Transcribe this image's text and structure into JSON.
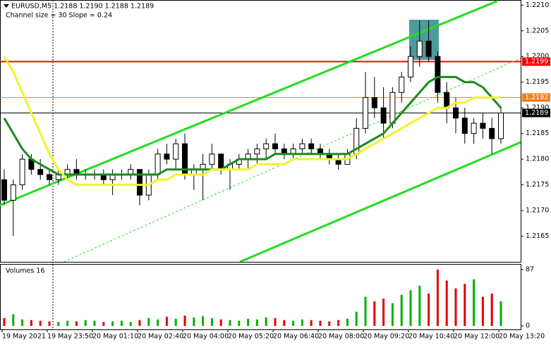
{
  "chart_data": {
    "type": "candlestick",
    "title": "EURUSD,M5  1.2188 1.2190 1.2188 1.2189",
    "subtitle": "Channel size = 30 Slope = 0.24",
    "categories": [
      "19 May 2021",
      null,
      null,
      null,
      null,
      "19 May 23:50",
      null,
      null,
      null,
      null,
      "20 May 01:10",
      null,
      null,
      null,
      null,
      "20 May 02:40",
      null,
      null,
      null,
      null,
      "20 May 04:00",
      null,
      null,
      null,
      null,
      "20 May 05:20",
      null,
      null,
      null,
      null,
      "20 May 06:40",
      null,
      null,
      null,
      null,
      "20 May 08:00",
      null,
      null,
      null,
      null,
      "20 May 09:20",
      null,
      null,
      null,
      null,
      "20 May 10:40",
      null,
      null,
      null,
      null,
      "20 May 12:00",
      null,
      null,
      null,
      null,
      "20 May 13:20"
    ],
    "open": [
      1.2176,
      1.2172,
      1.2175,
      1.218,
      1.2178,
      1.2177,
      1.2176,
      1.2177,
      1.2178,
      1.2177,
      1.2177,
      1.2177,
      1.2176,
      1.2177,
      1.2177,
      1.2178,
      1.2173,
      1.2177,
      1.2181,
      1.218,
      1.2183,
      1.2177,
      1.2178,
      1.2179,
      1.2181,
      1.2178,
      1.2179,
      1.218,
      1.2181,
      1.2182,
      1.2183,
      1.2182,
      1.2181,
      1.2182,
      1.2183,
      1.2182,
      1.2181,
      1.218,
      1.2179,
      1.2181,
      1.2186,
      1.2192,
      1.219,
      1.2187,
      1.2193,
      1.2196,
      1.22,
      1.2203,
      1.22,
      1.2193,
      1.219,
      1.2188,
      1.2185,
      1.2187,
      1.2186,
      1.2184
    ],
    "high": [
      1.2178,
      1.2176,
      1.2181,
      1.2181,
      1.218,
      1.2178,
      1.2178,
      1.2179,
      1.218,
      1.2178,
      1.2178,
      1.2178,
      1.2178,
      1.2178,
      1.2179,
      1.2178,
      1.2178,
      1.2182,
      1.2183,
      1.2184,
      1.2185,
      1.2179,
      1.2181,
      1.2183,
      1.2181,
      1.218,
      1.2181,
      1.2182,
      1.2183,
      1.2184,
      1.2185,
      1.2183,
      1.2183,
      1.2184,
      1.2184,
      1.2183,
      1.2182,
      1.2181,
      1.2182,
      1.2188,
      1.2197,
      1.2196,
      1.2194,
      1.2194,
      1.2197,
      1.2202,
      1.2207,
      1.2207,
      1.2201,
      1.2195,
      1.2192,
      1.219,
      1.2188,
      1.2189,
      1.2188,
      1.219
    ],
    "low": [
      1.2171,
      1.2165,
      1.2174,
      1.2177,
      1.2176,
      1.2175,
      1.2175,
      1.2176,
      1.2176,
      1.2176,
      1.2176,
      1.2175,
      1.2173,
      1.2176,
      1.2176,
      1.2171,
      1.2172,
      1.2176,
      1.2179,
      1.2178,
      1.2176,
      1.2174,
      1.2172,
      1.2178,
      1.2177,
      1.2174,
      1.2178,
      1.2178,
      1.2179,
      1.218,
      1.2181,
      1.218,
      1.218,
      1.2181,
      1.2181,
      1.218,
      1.2179,
      1.2178,
      1.2179,
      1.218,
      1.2185,
      1.2188,
      1.2184,
      1.2186,
      1.2191,
      1.2195,
      1.2198,
      1.2199,
      1.2191,
      1.2187,
      1.2185,
      1.2183,
      1.2183,
      1.2184,
      1.2181,
      1.2183
    ],
    "close": [
      1.2172,
      1.2175,
      1.218,
      1.2178,
      1.2177,
      1.2176,
      1.2177,
      1.2178,
      1.2177,
      1.2177,
      1.2177,
      1.2176,
      1.2177,
      1.2177,
      1.2178,
      1.2173,
      1.2177,
      1.2181,
      1.218,
      1.2183,
      1.2177,
      1.2178,
      1.2179,
      1.2181,
      1.2178,
      1.2179,
      1.218,
      1.2181,
      1.2182,
      1.2183,
      1.2182,
      1.2181,
      1.2182,
      1.2183,
      1.2182,
      1.2181,
      1.218,
      1.2179,
      1.2181,
      1.2186,
      1.2192,
      1.219,
      1.2187,
      1.2193,
      1.2196,
      1.22,
      1.2203,
      1.22,
      1.2193,
      1.219,
      1.2188,
      1.2185,
      1.2187,
      1.2186,
      1.2184,
      1.2189
    ],
    "up_color": "#ffffff",
    "down_color": "#000000",
    "ma": [
      {
        "color": "#1a8a1a",
        "values": [
          1.2188,
          1.2185,
          1.2182,
          1.218,
          1.2179,
          1.2178,
          1.2177,
          1.2177,
          1.2177,
          1.2177,
          1.2177,
          1.2177,
          1.2177,
          1.2177,
          1.2177,
          1.2177,
          1.2177,
          1.2177,
          1.2178,
          1.2178,
          1.2178,
          1.2178,
          1.2178,
          1.2178,
          1.2178,
          1.2179,
          1.218,
          1.218,
          1.218,
          1.218,
          1.2181,
          1.2181,
          1.2181,
          1.2181,
          1.2181,
          1.2181,
          1.2181,
          1.2181,
          1.2181,
          1.2182,
          1.2183,
          1.2184,
          1.2185,
          1.2187,
          1.2189,
          1.2191,
          1.2193,
          1.2195,
          1.2196,
          1.2196,
          1.2196,
          1.2195,
          1.2195,
          1.2194,
          1.2192,
          1.219
        ]
      },
      {
        "color": "#f2f22a",
        "values": [
          1.22,
          1.2197,
          1.2193,
          1.2189,
          1.2185,
          1.2181,
          1.2178,
          1.2176,
          1.2175,
          1.2175,
          1.2175,
          1.2175,
          1.2175,
          1.2175,
          1.2175,
          1.2175,
          1.2175,
          1.2176,
          1.2176,
          1.2177,
          1.2177,
          1.2177,
          1.2177,
          1.2178,
          1.2178,
          1.2178,
          1.2178,
          1.2178,
          1.2179,
          1.2179,
          1.2179,
          1.2179,
          1.218,
          1.218,
          1.218,
          1.218,
          1.218,
          1.218,
          1.218,
          1.2181,
          1.2182,
          1.2183,
          1.2184,
          1.2185,
          1.2186,
          1.2187,
          1.2188,
          1.2189,
          1.219,
          1.219,
          1.2191,
          1.2191,
          1.2192,
          1.2192,
          1.2192,
          1.2192
        ]
      }
    ],
    "channel": [
      {
        "color": "#22dd22",
        "dashed": false,
        "points": [
          [
            -0.5,
            1.2171
          ],
          [
            54.6,
            1.22108
          ]
        ]
      },
      {
        "color": "#22dd22",
        "dashed": false,
        "points": [
          [
            26.1,
            1.216
          ],
          [
            57.2,
            1.21833
          ]
        ]
      },
      {
        "color": "#22dd22",
        "dashed": true,
        "points": [
          [
            6.6,
            1.216
          ],
          [
            57.2,
            1.21997
          ]
        ]
      }
    ],
    "levels": [
      {
        "value": 1.2199,
        "color": "#ff0000"
      },
      {
        "value": 1.2192,
        "color": "#f08020"
      },
      {
        "value": 1.2189,
        "color": "#000000"
      }
    ],
    "ylim": [
      1.216,
      1.2211
    ],
    "yticks": [
      {
        "value": 1.221,
        "label": "1.2210"
      },
      1.2205,
      {
        "value": 1.22,
        "label": "1.2200"
      },
      1.2195,
      {
        "value": 1.219,
        "label": "1.2190"
      },
      1.2185,
      {
        "value": 1.218,
        "label": "1.2180"
      },
      1.2175,
      {
        "value": 1.217,
        "label": "1.2170"
      },
      1.2165
    ],
    "volume_title": "Volumes 16",
    "volumes": [
      12,
      18,
      10,
      9,
      8,
      7,
      6,
      8,
      7,
      9,
      8,
      6,
      7,
      8,
      6,
      9,
      12,
      10,
      14,
      11,
      16,
      13,
      15,
      12,
      10,
      9,
      8,
      11,
      10,
      13,
      12,
      9,
      8,
      10,
      9,
      8,
      7,
      9,
      11,
      22,
      45,
      38,
      42,
      35,
      48,
      55,
      62,
      50,
      87,
      70,
      58,
      65,
      72,
      45,
      50,
      38
    ],
    "volume_up_color": "#00b000",
    "volume_down_color": "#e00000",
    "vlim": [
      0,
      87
    ],
    "vticks": [
      87,
      0
    ]
  }
}
